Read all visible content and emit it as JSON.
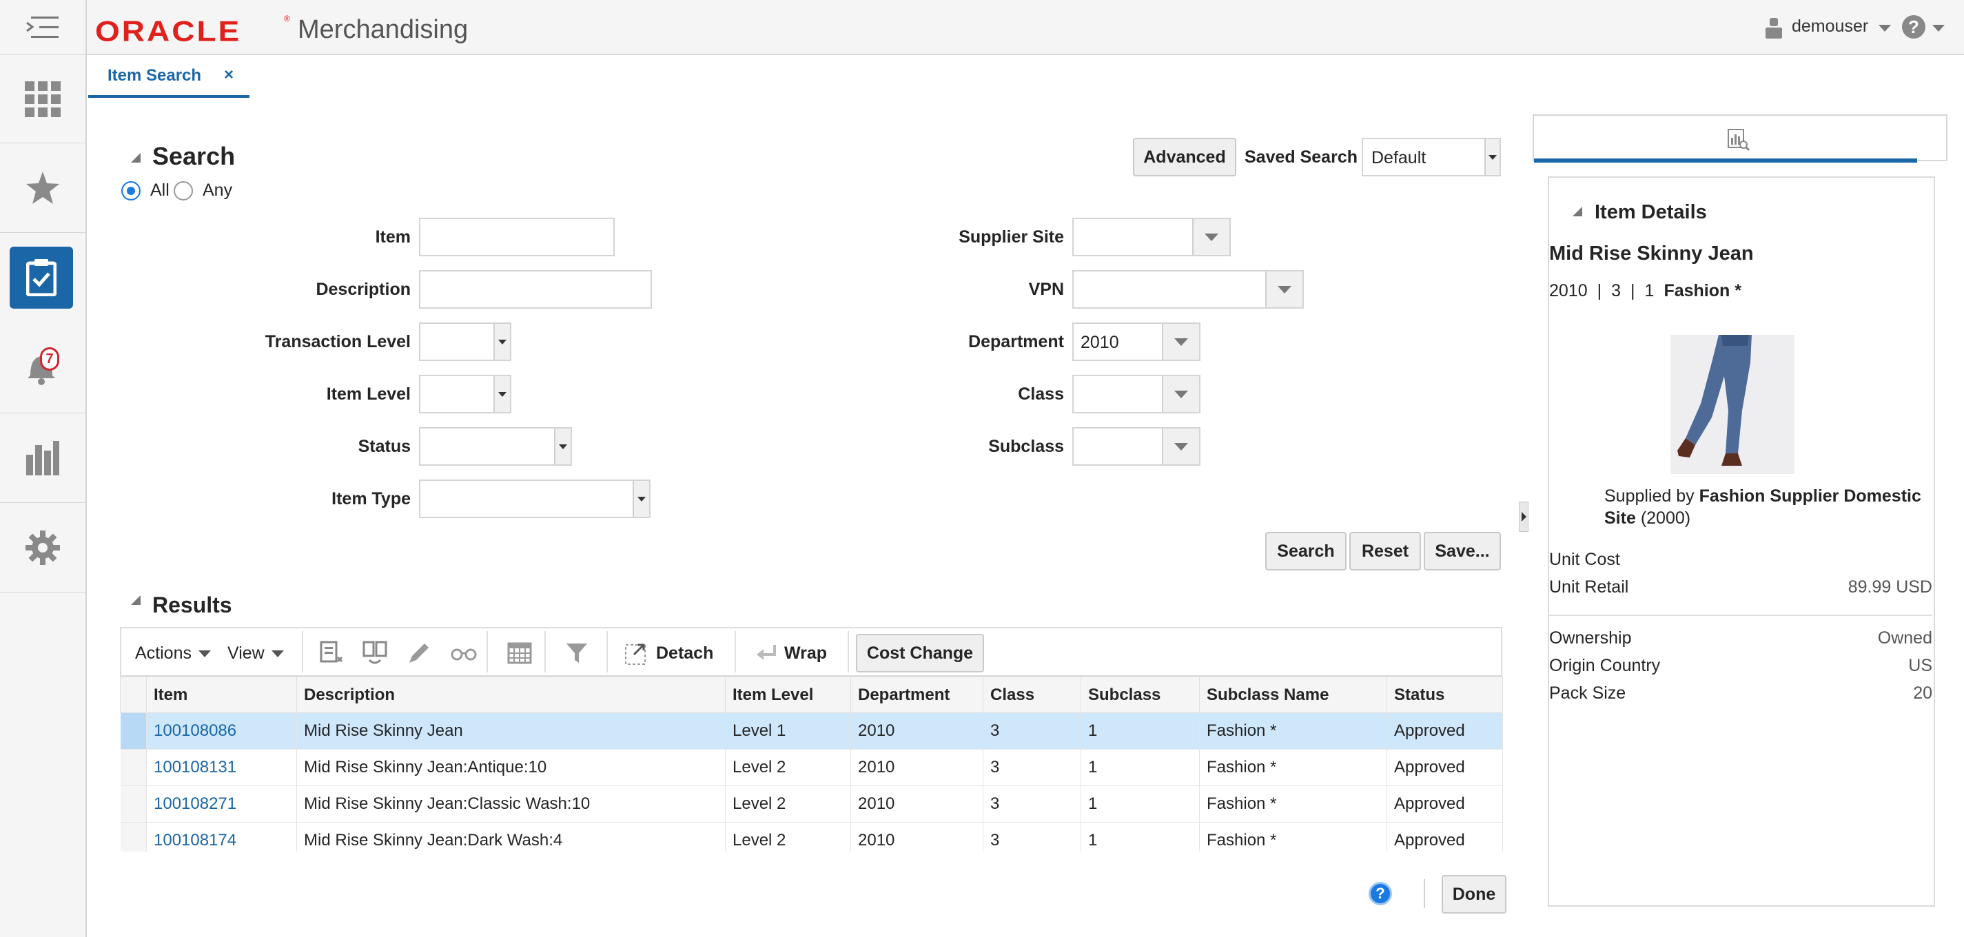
{
  "header": {
    "logo_text": "ORACLE",
    "logo_mark": "®",
    "app_name": "Merchandising",
    "user_name": "demouser",
    "brand_color": "#e0201b",
    "accent_color": "#1a66a7"
  },
  "sidebar": {
    "items": [
      {
        "icon": "menu-icon"
      },
      {
        "icon": "grid-icon"
      },
      {
        "icon": "star-icon"
      },
      {
        "icon": "task-icon"
      },
      {
        "icon": "bell-icon",
        "badge": "7"
      },
      {
        "icon": "reports-icon"
      },
      {
        "icon": "gear-icon"
      }
    ]
  },
  "tab": {
    "label": "Item Search",
    "close": "×"
  },
  "search": {
    "title": "Search",
    "match_all": "All",
    "match_any": "Any",
    "advanced": "Advanced",
    "saved_search_label": "Saved Search",
    "saved_search_value": "Default",
    "fields_left": {
      "item": "Item",
      "description": "Description",
      "transaction_level": "Transaction Level",
      "item_level": "Item Level",
      "status": "Status",
      "item_type": "Item Type"
    },
    "fields_right": {
      "supplier_site": "Supplier Site",
      "vpn": "VPN",
      "department": "Department",
      "department_value": "2010",
      "class": "Class",
      "subclass": "Subclass"
    },
    "buttons": {
      "search": "Search",
      "reset": "Reset",
      "save": "Save..."
    }
  },
  "results": {
    "title": "Results",
    "toolbar": {
      "actions": "Actions",
      "view": "View",
      "detach": "Detach",
      "wrap": "Wrap",
      "cost_change": "Cost Change"
    },
    "columns": [
      "Item",
      "Description",
      "Item Level",
      "Department",
      "Class",
      "Subclass",
      "Subclass Name",
      "Status"
    ],
    "rows": [
      [
        "100108086",
        "Mid Rise Skinny Jean",
        "Level 1",
        "2010",
        "3",
        "1",
        "Fashion *",
        "Approved"
      ],
      [
        "100108131",
        "Mid Rise Skinny Jean:Antique:10",
        "Level 2",
        "2010",
        "3",
        "1",
        "Fashion *",
        "Approved"
      ],
      [
        "100108271",
        "Mid Rise Skinny Jean:Classic Wash:10",
        "Level 2",
        "2010",
        "3",
        "1",
        "Fashion *",
        "Approved"
      ],
      [
        "100108174",
        "Mid Rise Skinny Jean:Dark Wash:4",
        "Level 2",
        "2010",
        "3",
        "1",
        "Fashion *",
        "Approved"
      ]
    ]
  },
  "footer": {
    "done": "Done"
  },
  "item_details": {
    "title": "Item Details",
    "item_name": "Mid Rise Skinny Jean",
    "dept": "2010",
    "class": "3",
    "subclass": "1",
    "subclass_name": "Fashion *",
    "sep": "|",
    "supplied_by": "Supplied by",
    "supplier_name": "Fashion Supplier Domestic",
    "supplier_name_2": "Site",
    "supplier_id": "(2000)",
    "unit_cost_label": "Unit Cost",
    "unit_retail_label": "Unit Retail",
    "unit_retail_value": "89.99",
    "currency": "USD",
    "ownership_label": "Ownership",
    "ownership_value": "Owned",
    "origin_label": "Origin Country",
    "origin_value": "US",
    "pack_label": "Pack Size",
    "pack_value": "20"
  }
}
